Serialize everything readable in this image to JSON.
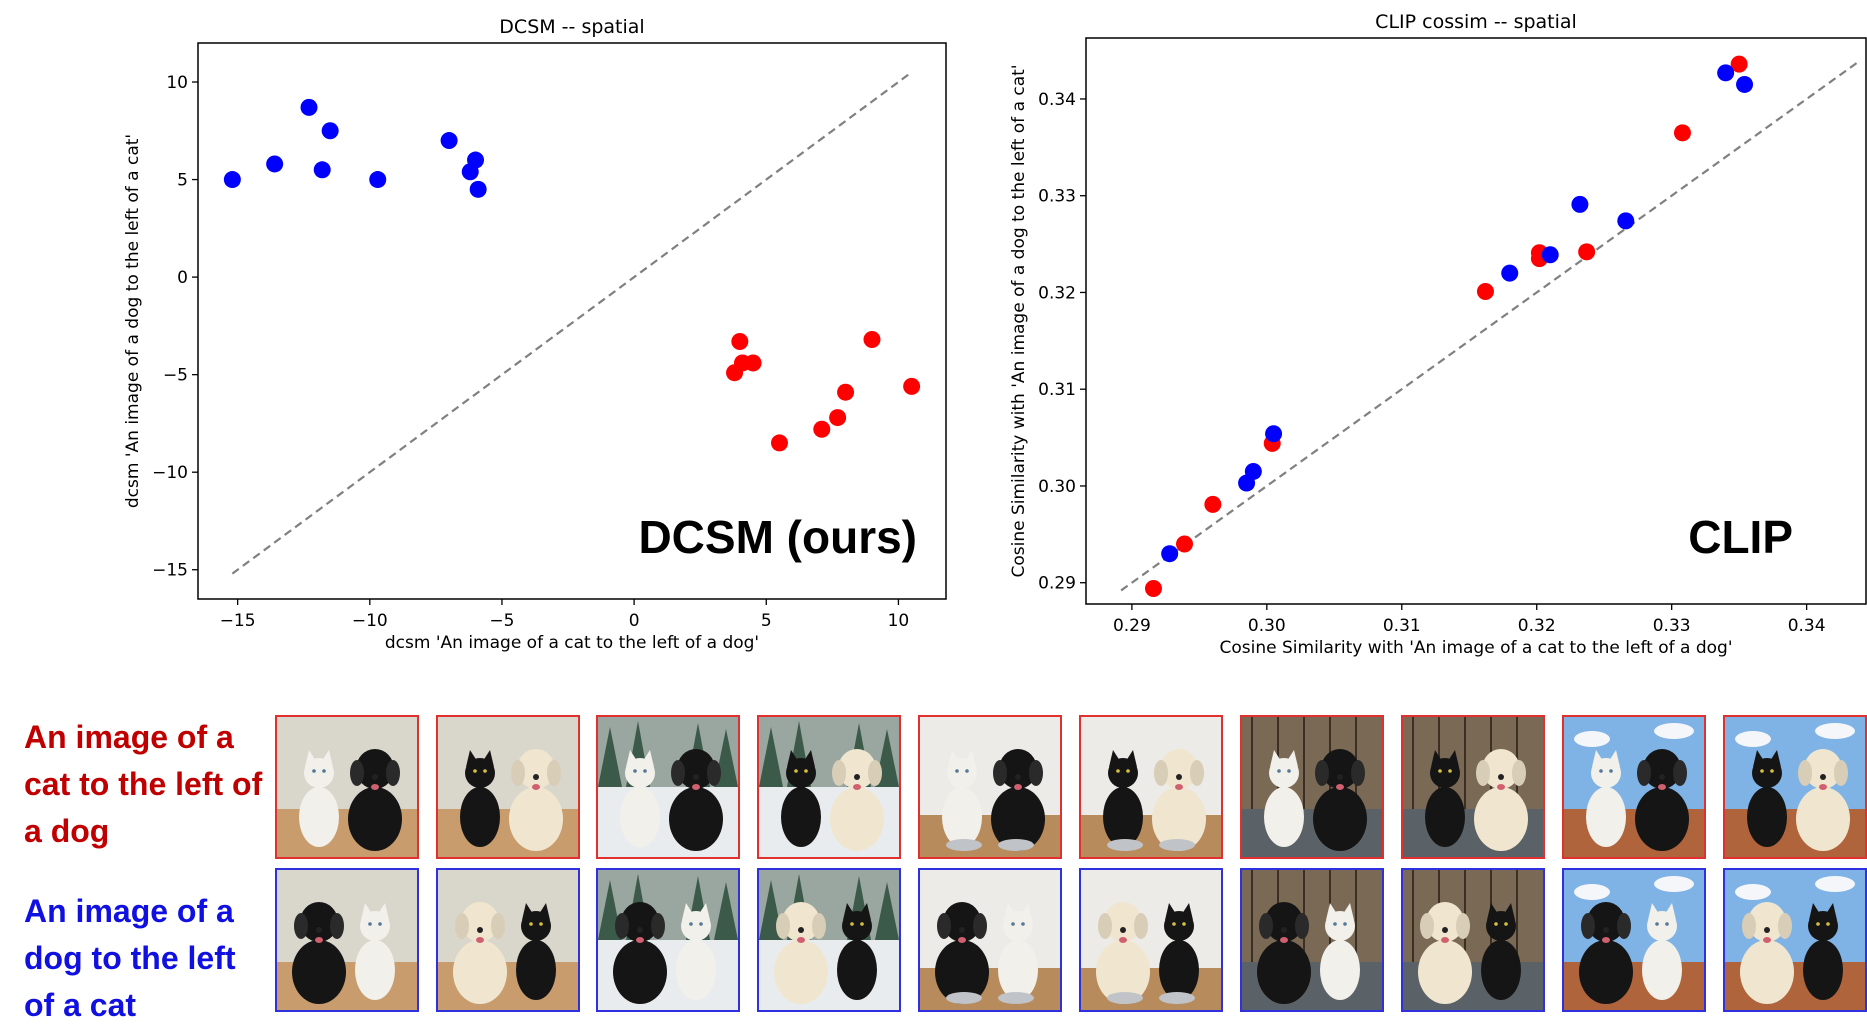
{
  "chart_data": [
    {
      "type": "scatter",
      "title": "DCSM -- spatial",
      "xlabel": "dcsm 'An image of a cat to the left of a dog'",
      "ylabel": "dcsm 'An image of a dog to the left of a cat'",
      "xlim": [
        -16.5,
        11.8
      ],
      "ylim": [
        -16.5,
        12.0
      ],
      "xticks": [
        -15,
        -10,
        -5,
        0,
        5,
        10
      ],
      "xtick_labels": [
        "−15",
        "−10",
        "−5",
        "0",
        "5",
        "10"
      ],
      "yticks": [
        10,
        5,
        0,
        -5,
        -10,
        -15
      ],
      "ytick_labels": [
        "10",
        "5",
        "0",
        "−5",
        "−10",
        "−15"
      ],
      "diagonal": [
        [
          -15.2,
          -15.2
        ],
        [
          10.5,
          10.5
        ]
      ],
      "annotation": "DCSM (ours)",
      "series": [
        {
          "color": "#0000ff",
          "points": [
            [
              -15.2,
              5.0
            ],
            [
              -13.6,
              5.8
            ],
            [
              -12.3,
              8.7
            ],
            [
              -11.8,
              5.5
            ],
            [
              -11.5,
              7.5
            ],
            [
              -9.7,
              5.0
            ],
            [
              -7.0,
              7.0
            ],
            [
              -6.2,
              5.4
            ],
            [
              -6.0,
              6.0
            ],
            [
              -5.9,
              4.5
            ]
          ]
        },
        {
          "color": "#ff0000",
          "points": [
            [
              3.8,
              -4.9
            ],
            [
              4.0,
              -3.3
            ],
            [
              4.1,
              -4.4
            ],
            [
              4.5,
              -4.4
            ],
            [
              5.5,
              -8.5
            ],
            [
              7.1,
              -7.8
            ],
            [
              7.7,
              -7.2
            ],
            [
              8.0,
              -5.9
            ],
            [
              9.0,
              -3.2
            ],
            [
              10.5,
              -5.6
            ]
          ]
        }
      ]
    },
    {
      "type": "scatter",
      "title": "CLIP cossim -- spatial",
      "xlabel": "Cosine Similarity with 'An image of a cat to the left of a dog'",
      "ylabel": "Cosine Similarity with 'An image of a dog to the left of a cat'",
      "xlim": [
        0.2866,
        0.3444
      ],
      "ylim": [
        0.2878,
        0.3463
      ],
      "xticks": [
        0.29,
        0.3,
        0.31,
        0.32,
        0.33,
        0.34
      ],
      "xtick_labels": [
        "0.29",
        "0.30",
        "0.31",
        "0.32",
        "0.33",
        "0.34"
      ],
      "yticks": [
        0.34,
        0.33,
        0.32,
        0.31,
        0.3,
        0.29
      ],
      "ytick_labels": [
        "0.34",
        "0.33",
        "0.32",
        "0.31",
        "0.30",
        "0.29"
      ],
      "diagonal": [
        [
          0.2892,
          0.2892
        ],
        [
          0.3437,
          0.3437
        ]
      ],
      "annotation": "CLIP",
      "series": [
        {
          "color": "#ff0000",
          "points": [
            [
              0.2916,
              0.2894
            ],
            [
              0.2939,
              0.294
            ],
            [
              0.296,
              0.2981
            ],
            [
              0.3004,
              0.3044
            ],
            [
              0.3162,
              0.3201
            ],
            [
              0.3202,
              0.3241
            ],
            [
              0.3202,
              0.3235
            ],
            [
              0.3237,
              0.3242
            ],
            [
              0.3308,
              0.3365
            ],
            [
              0.335,
              0.3436
            ]
          ]
        },
        {
          "color": "#0000ff",
          "points": [
            [
              0.2928,
              0.293
            ],
            [
              0.2985,
              0.3003
            ],
            [
              0.299,
              0.3015
            ],
            [
              0.3005,
              0.3054
            ],
            [
              0.318,
              0.322
            ],
            [
              0.321,
              0.3239
            ],
            [
              0.3232,
              0.3291
            ],
            [
              0.3266,
              0.3274
            ],
            [
              0.334,
              0.3427
            ],
            [
              0.3354,
              0.3415
            ]
          ]
        }
      ]
    }
  ],
  "captions": {
    "red": "An image of a cat to the left of a dog",
    "blue": "An image of a dog to the left of a cat"
  },
  "colors": {
    "red_caption": "#c00000",
    "blue_caption": "#1010e0",
    "red_border": "#e03030",
    "blue_border": "#3030e0"
  },
  "thumbnails": {
    "scenes": [
      "sofa",
      "sofa",
      "snow",
      "snow",
      "bowls",
      "bowls",
      "cage",
      "cage",
      "roof",
      "roof"
    ],
    "red_row": [
      {
        "left": {
          "animal": "cat",
          "fur": "#f2f0ea"
        },
        "right": {
          "animal": "dog",
          "fur": "#151515"
        }
      },
      {
        "left": {
          "animal": "cat",
          "fur": "#151515"
        },
        "right": {
          "animal": "dog",
          "fur": "#f0e6cf"
        }
      },
      {
        "left": {
          "animal": "cat",
          "fur": "#f2f0ea"
        },
        "right": {
          "animal": "dog",
          "fur": "#151515"
        }
      },
      {
        "left": {
          "animal": "cat",
          "fur": "#151515"
        },
        "right": {
          "animal": "dog",
          "fur": "#f0e6cf"
        }
      },
      {
        "left": {
          "animal": "cat",
          "fur": "#f2f0ea"
        },
        "right": {
          "animal": "dog",
          "fur": "#151515"
        }
      },
      {
        "left": {
          "animal": "cat",
          "fur": "#151515"
        },
        "right": {
          "animal": "dog",
          "fur": "#f0e6cf"
        }
      },
      {
        "left": {
          "animal": "cat",
          "fur": "#f2f0ea"
        },
        "right": {
          "animal": "dog",
          "fur": "#151515"
        }
      },
      {
        "left": {
          "animal": "cat",
          "fur": "#151515"
        },
        "right": {
          "animal": "dog",
          "fur": "#f0e6cf"
        }
      },
      {
        "left": {
          "animal": "cat",
          "fur": "#f2f0ea"
        },
        "right": {
          "animal": "dog",
          "fur": "#151515"
        }
      },
      {
        "left": {
          "animal": "cat",
          "fur": "#151515"
        },
        "right": {
          "animal": "dog",
          "fur": "#f0e6cf"
        }
      }
    ],
    "blue_row": [
      {
        "left": {
          "animal": "dog",
          "fur": "#151515"
        },
        "right": {
          "animal": "cat",
          "fur": "#f2f0ea"
        }
      },
      {
        "left": {
          "animal": "dog",
          "fur": "#f0e6cf"
        },
        "right": {
          "animal": "cat",
          "fur": "#151515"
        }
      },
      {
        "left": {
          "animal": "dog",
          "fur": "#151515"
        },
        "right": {
          "animal": "cat",
          "fur": "#f2f0ea"
        }
      },
      {
        "left": {
          "animal": "dog",
          "fur": "#f0e6cf"
        },
        "right": {
          "animal": "cat",
          "fur": "#151515"
        }
      },
      {
        "left": {
          "animal": "dog",
          "fur": "#151515"
        },
        "right": {
          "animal": "cat",
          "fur": "#f2f0ea"
        }
      },
      {
        "left": {
          "animal": "dog",
          "fur": "#f0e6cf"
        },
        "right": {
          "animal": "cat",
          "fur": "#151515"
        }
      },
      {
        "left": {
          "animal": "dog",
          "fur": "#151515"
        },
        "right": {
          "animal": "cat",
          "fur": "#f2f0ea"
        }
      },
      {
        "left": {
          "animal": "dog",
          "fur": "#f0e6cf"
        },
        "right": {
          "animal": "cat",
          "fur": "#151515"
        }
      },
      {
        "left": {
          "animal": "dog",
          "fur": "#151515"
        },
        "right": {
          "animal": "cat",
          "fur": "#f2f0ea"
        }
      },
      {
        "left": {
          "animal": "dog",
          "fur": "#f0e6cf"
        },
        "right": {
          "animal": "cat",
          "fur": "#151515"
        }
      }
    ]
  }
}
